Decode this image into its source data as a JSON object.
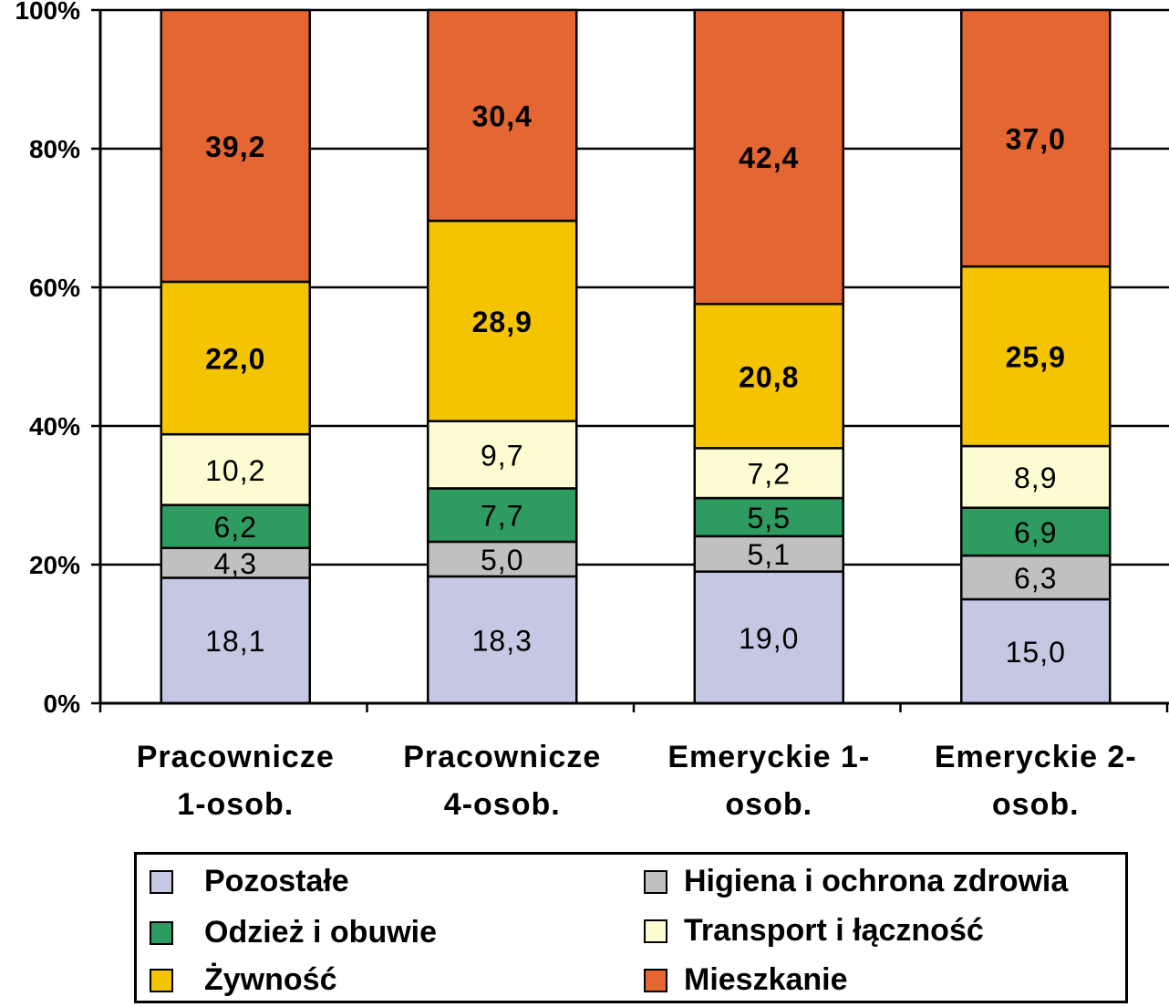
{
  "chart_data": {
    "type": "bar",
    "stacked": true,
    "normalized_percent": true,
    "categories": [
      [
        "Pracownicze",
        "1-osob."
      ],
      [
        "Pracownicze",
        "4-osob."
      ],
      [
        "Emeryckie 1-",
        "osob."
      ],
      [
        "Emeryckie 2-",
        "osob."
      ]
    ],
    "ylim": [
      0,
      100
    ],
    "yticks": [
      "0%",
      "20%",
      "40%",
      "60%",
      "80%",
      "100%"
    ],
    "ytick_values": [
      0,
      20,
      40,
      60,
      80,
      100
    ],
    "grid": true,
    "legend_placement": "bottom",
    "series": [
      {
        "name": "Pozostałe",
        "color": "#c4c8e3",
        "bold": false,
        "values": [
          18.1,
          18.3,
          19.0,
          15.0
        ],
        "labels": [
          "18,1",
          "18,3",
          "19,0",
          "15,0"
        ]
      },
      {
        "name": "Higiena i ochrona zdrowia",
        "color": "#c0c0c0",
        "bold": false,
        "values": [
          4.3,
          5.0,
          5.1,
          6.3
        ],
        "labels": [
          "4,3",
          "5,0",
          "5,1",
          "6,3"
        ]
      },
      {
        "name": "Odzież i obuwie",
        "color": "#2e9b61",
        "bold": false,
        "values": [
          6.2,
          7.7,
          5.5,
          6.9
        ],
        "labels": [
          "6,2",
          "7,7",
          "5,5",
          "6,9"
        ]
      },
      {
        "name": "Transport i łączność",
        "color": "#fcfbd1",
        "bold": false,
        "values": [
          10.2,
          9.7,
          7.2,
          8.9
        ],
        "labels": [
          "10,2",
          "9,7",
          "7,2",
          "8,9"
        ]
      },
      {
        "name": "Żywność",
        "color": "#f4c400",
        "bold": true,
        "values": [
          22.0,
          28.9,
          20.8,
          25.9
        ],
        "labels": [
          "22,0",
          "28,9",
          "20,8",
          "25,9"
        ]
      },
      {
        "name": "Mieszkanie",
        "color": "#e46632",
        "bold": true,
        "values": [
          39.2,
          30.4,
          42.4,
          37.0
        ],
        "labels": [
          "39,2",
          "30,4",
          "42,4",
          "37,0"
        ]
      }
    ]
  },
  "legend": [
    {
      "series": 0,
      "label": "Pozostałe"
    },
    {
      "series": 1,
      "label": "Higiena i ochrona zdrowia"
    },
    {
      "series": 2,
      "label": "Odzież i obuwie"
    },
    {
      "series": 3,
      "label": "Transport i łączność"
    },
    {
      "series": 4,
      "label": "Żywność"
    },
    {
      "series": 5,
      "label": "Mieszkanie"
    }
  ]
}
